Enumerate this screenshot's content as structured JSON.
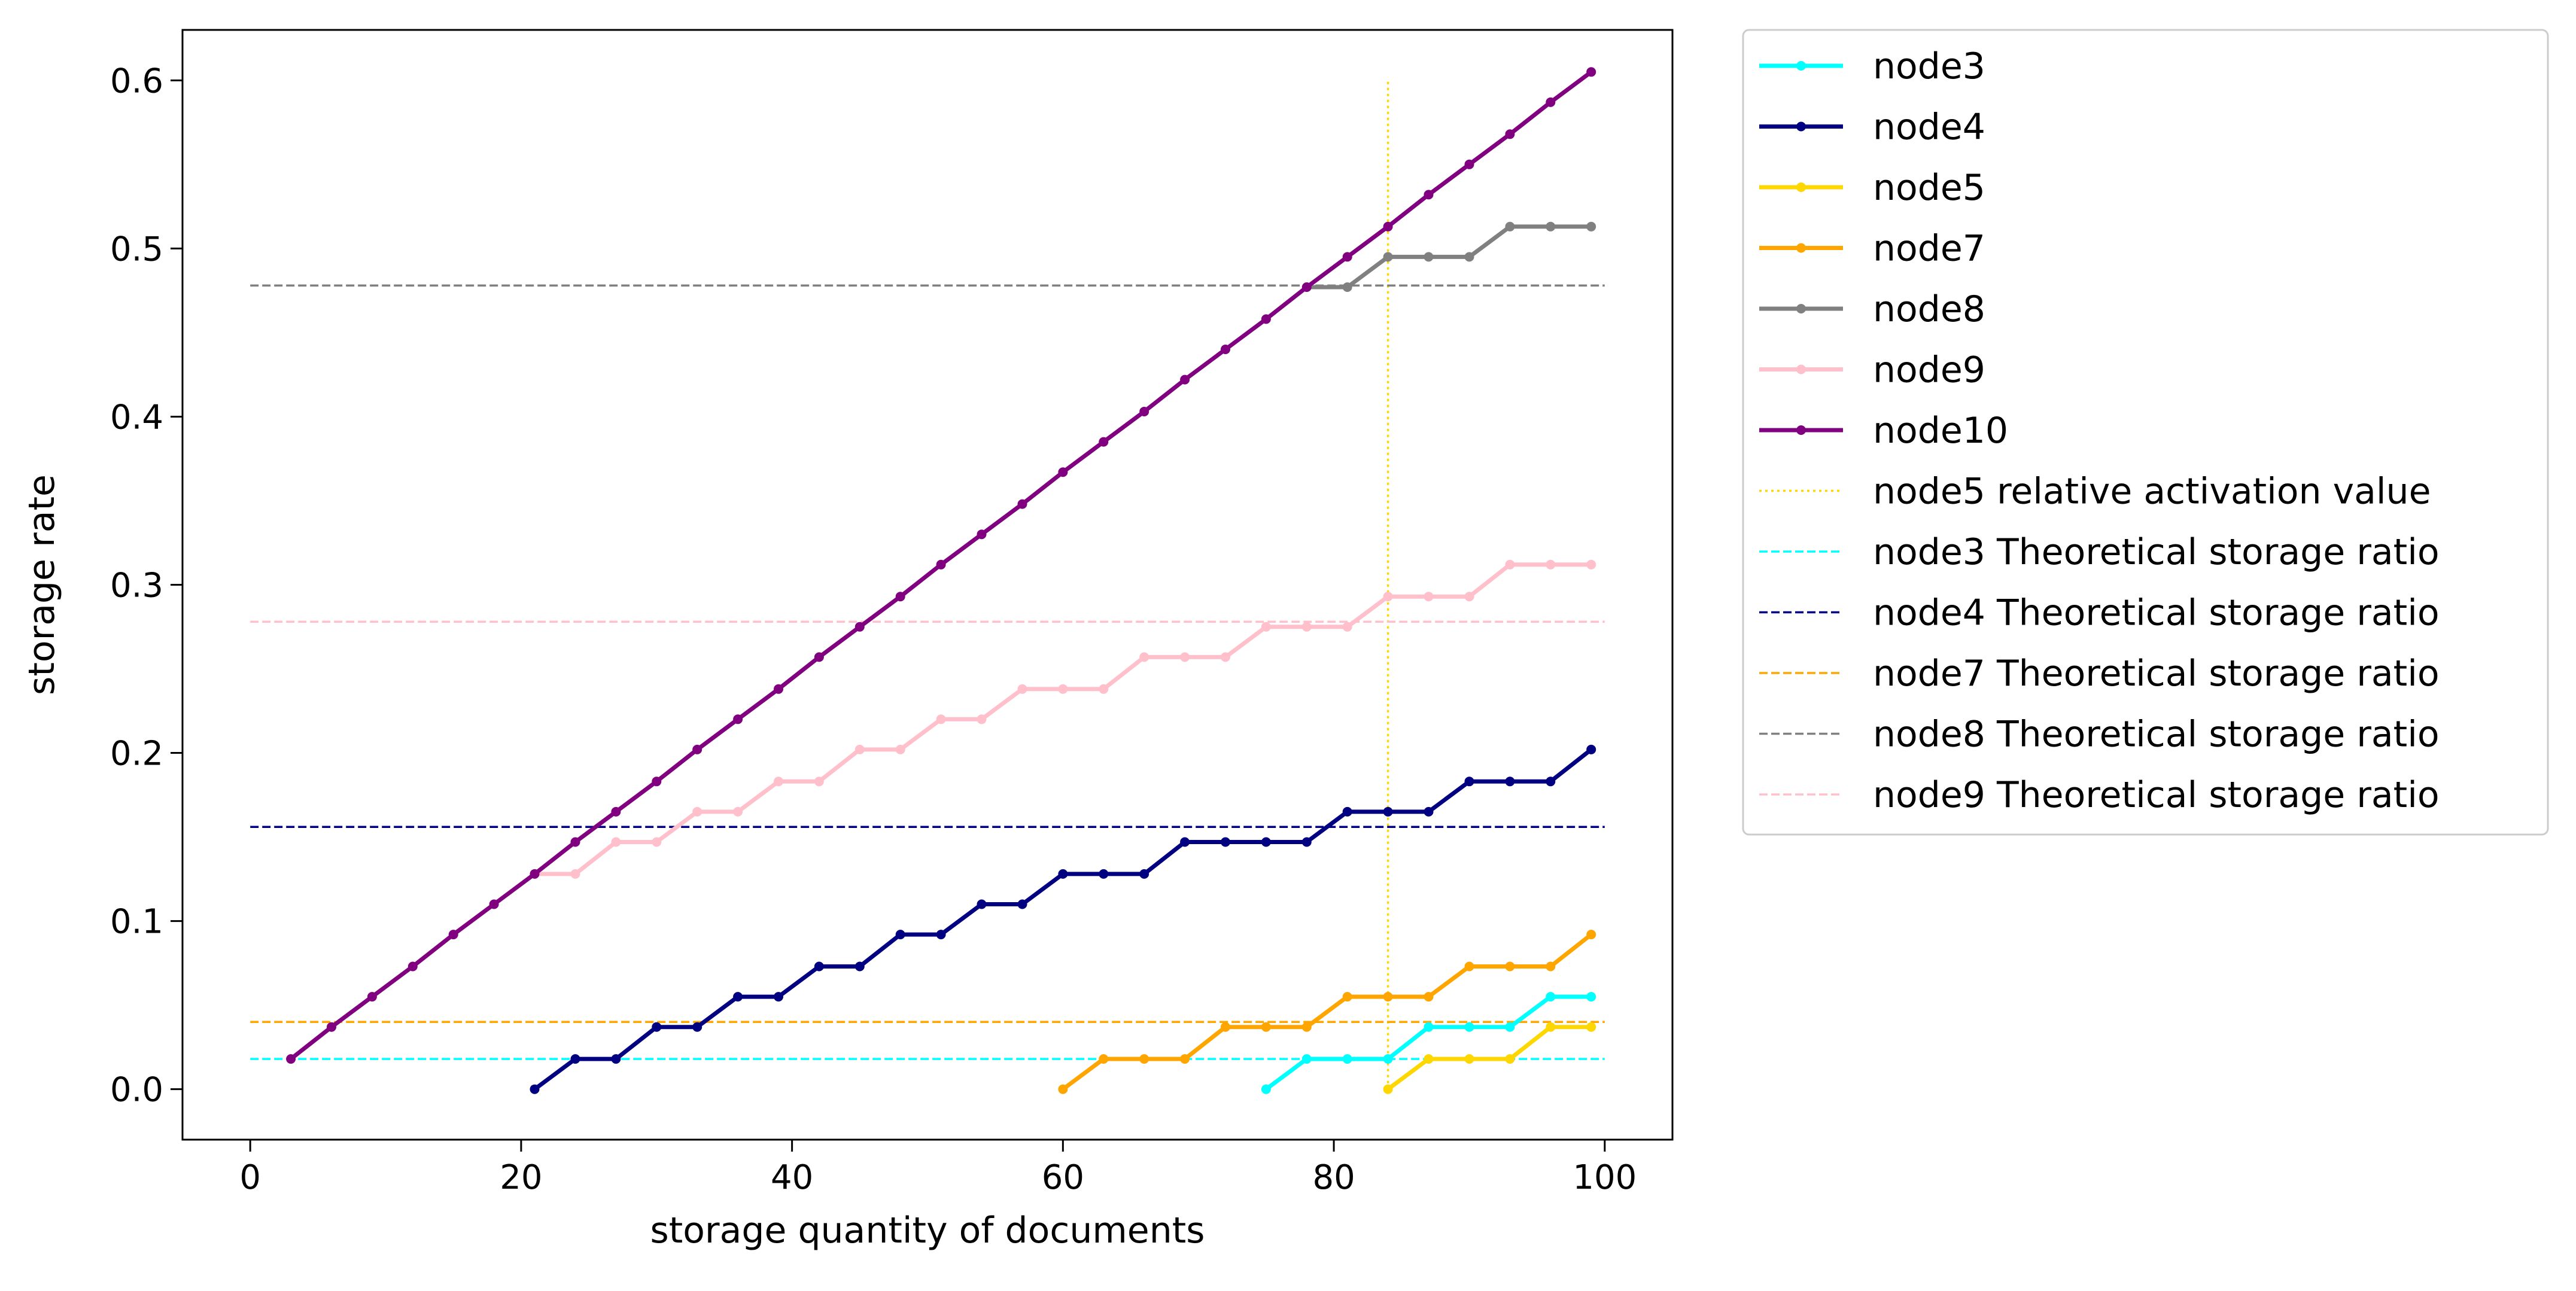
{
  "chart_data": {
    "type": "line",
    "xlabel": "storage quantity of documents",
    "ylabel": "storage rate",
    "xlim": [
      -5,
      105
    ],
    "ylim": [
      -0.03,
      0.63
    ],
    "x_ticks": [
      0,
      20,
      40,
      60,
      80,
      100
    ],
    "y_ticks": [
      0.0,
      0.1,
      0.2,
      0.3,
      0.4,
      0.5,
      0.6
    ],
    "x_tick_labels": [
      "0",
      "20",
      "40",
      "60",
      "80",
      "100"
    ],
    "y_tick_labels": [
      "0.0",
      "0.1",
      "0.2",
      "0.3",
      "0.4",
      "0.5",
      "0.6"
    ],
    "grid": false,
    "legend_position": "outside-right",
    "series": [
      {
        "name": "node3",
        "color": "#00ffff",
        "style": "solid-marker",
        "x": [
          75,
          78,
          81,
          84,
          87,
          90,
          93,
          96,
          99
        ],
        "y": [
          0.0,
          0.018,
          0.018,
          0.018,
          0.037,
          0.037,
          0.037,
          0.055,
          0.055
        ]
      },
      {
        "name": "node4",
        "color": "#000080",
        "style": "solid-marker",
        "x": [
          21,
          24,
          27,
          30,
          33,
          36,
          39,
          42,
          45,
          48,
          51,
          54,
          57,
          60,
          63,
          66,
          69,
          72,
          75,
          78,
          81,
          84,
          87,
          90,
          93,
          96,
          99
        ],
        "y": [
          0.0,
          0.018,
          0.018,
          0.037,
          0.037,
          0.055,
          0.055,
          0.073,
          0.073,
          0.092,
          0.092,
          0.11,
          0.11,
          0.128,
          0.128,
          0.128,
          0.147,
          0.147,
          0.147,
          0.147,
          0.165,
          0.165,
          0.165,
          0.183,
          0.183,
          0.183,
          0.202
        ]
      },
      {
        "name": "node5",
        "color": "#ffd700",
        "style": "solid-marker",
        "x": [
          84,
          87,
          90,
          93,
          96,
          99
        ],
        "y": [
          0.0,
          0.018,
          0.018,
          0.018,
          0.037,
          0.037
        ]
      },
      {
        "name": "node7",
        "color": "#ffa500",
        "style": "solid-marker",
        "x": [
          60,
          63,
          66,
          69,
          72,
          75,
          78,
          81,
          84,
          87,
          90,
          93,
          96,
          99
        ],
        "y": [
          0.0,
          0.018,
          0.018,
          0.018,
          0.037,
          0.037,
          0.037,
          0.055,
          0.055,
          0.055,
          0.073,
          0.073,
          0.073,
          0.092
        ]
      },
      {
        "name": "node8",
        "color": "#808080",
        "style": "solid-marker",
        "x": [
          78,
          81,
          84,
          87,
          90,
          93,
          96,
          99
        ],
        "y": [
          0.477,
          0.477,
          0.495,
          0.495,
          0.495,
          0.513,
          0.513,
          0.513
        ]
      },
      {
        "name": "node9",
        "color": "#ffc0cb",
        "style": "solid-marker",
        "x": [
          21,
          24,
          27,
          30,
          33,
          36,
          39,
          42,
          45,
          48,
          51,
          54,
          57,
          60,
          63,
          66,
          69,
          72,
          75,
          78,
          81,
          84,
          87,
          90,
          93,
          96,
          99
        ],
        "y": [
          0.128,
          0.128,
          0.147,
          0.147,
          0.165,
          0.165,
          0.183,
          0.183,
          0.202,
          0.202,
          0.22,
          0.22,
          0.238,
          0.238,
          0.238,
          0.257,
          0.257,
          0.257,
          0.275,
          0.275,
          0.275,
          0.293,
          0.293,
          0.293,
          0.312,
          0.312,
          0.312
        ]
      },
      {
        "name": "node10",
        "color": "#800080",
        "style": "solid-marker",
        "x": [
          3,
          6,
          9,
          12,
          15,
          18,
          21,
          24,
          27,
          30,
          33,
          36,
          39,
          42,
          45,
          48,
          51,
          54,
          57,
          60,
          63,
          66,
          69,
          72,
          75,
          78,
          81,
          84,
          87,
          90,
          93,
          96,
          99
        ],
        "y": [
          0.018,
          0.037,
          0.055,
          0.073,
          0.092,
          0.11,
          0.128,
          0.147,
          0.165,
          0.183,
          0.202,
          0.22,
          0.238,
          0.257,
          0.275,
          0.293,
          0.312,
          0.33,
          0.348,
          0.367,
          0.385,
          0.403,
          0.422,
          0.44,
          0.458,
          0.477,
          0.495,
          0.513,
          0.532,
          0.55,
          0.568,
          0.587,
          0.605
        ]
      },
      {
        "name": "node5 relative activation value",
        "color": "#ffd700",
        "style": "dotted",
        "x": [
          84,
          84
        ],
        "y": [
          0.0,
          0.6
        ]
      },
      {
        "name": "node3 Theoretical storage ratio",
        "color": "#00ffff",
        "style": "dashed",
        "x": [
          0,
          100
        ],
        "y": [
          0.018,
          0.018
        ]
      },
      {
        "name": "node4 Theoretical storage ratio",
        "color": "#000080",
        "style": "dashed",
        "x": [
          0,
          100
        ],
        "y": [
          0.156,
          0.156
        ]
      },
      {
        "name": "node7 Theoretical storage ratio",
        "color": "#ffa500",
        "style": "dashed",
        "x": [
          0,
          100
        ],
        "y": [
          0.04,
          0.04
        ]
      },
      {
        "name": "node8 Theoretical storage ratio",
        "color": "#808080",
        "style": "dashed",
        "x": [
          0,
          100
        ],
        "y": [
          0.478,
          0.478
        ]
      },
      {
        "name": "node9 Theoretical storage ratio",
        "color": "#ffc0cb",
        "style": "dashed",
        "x": [
          0,
          100
        ],
        "y": [
          0.278,
          0.278
        ]
      }
    ]
  }
}
